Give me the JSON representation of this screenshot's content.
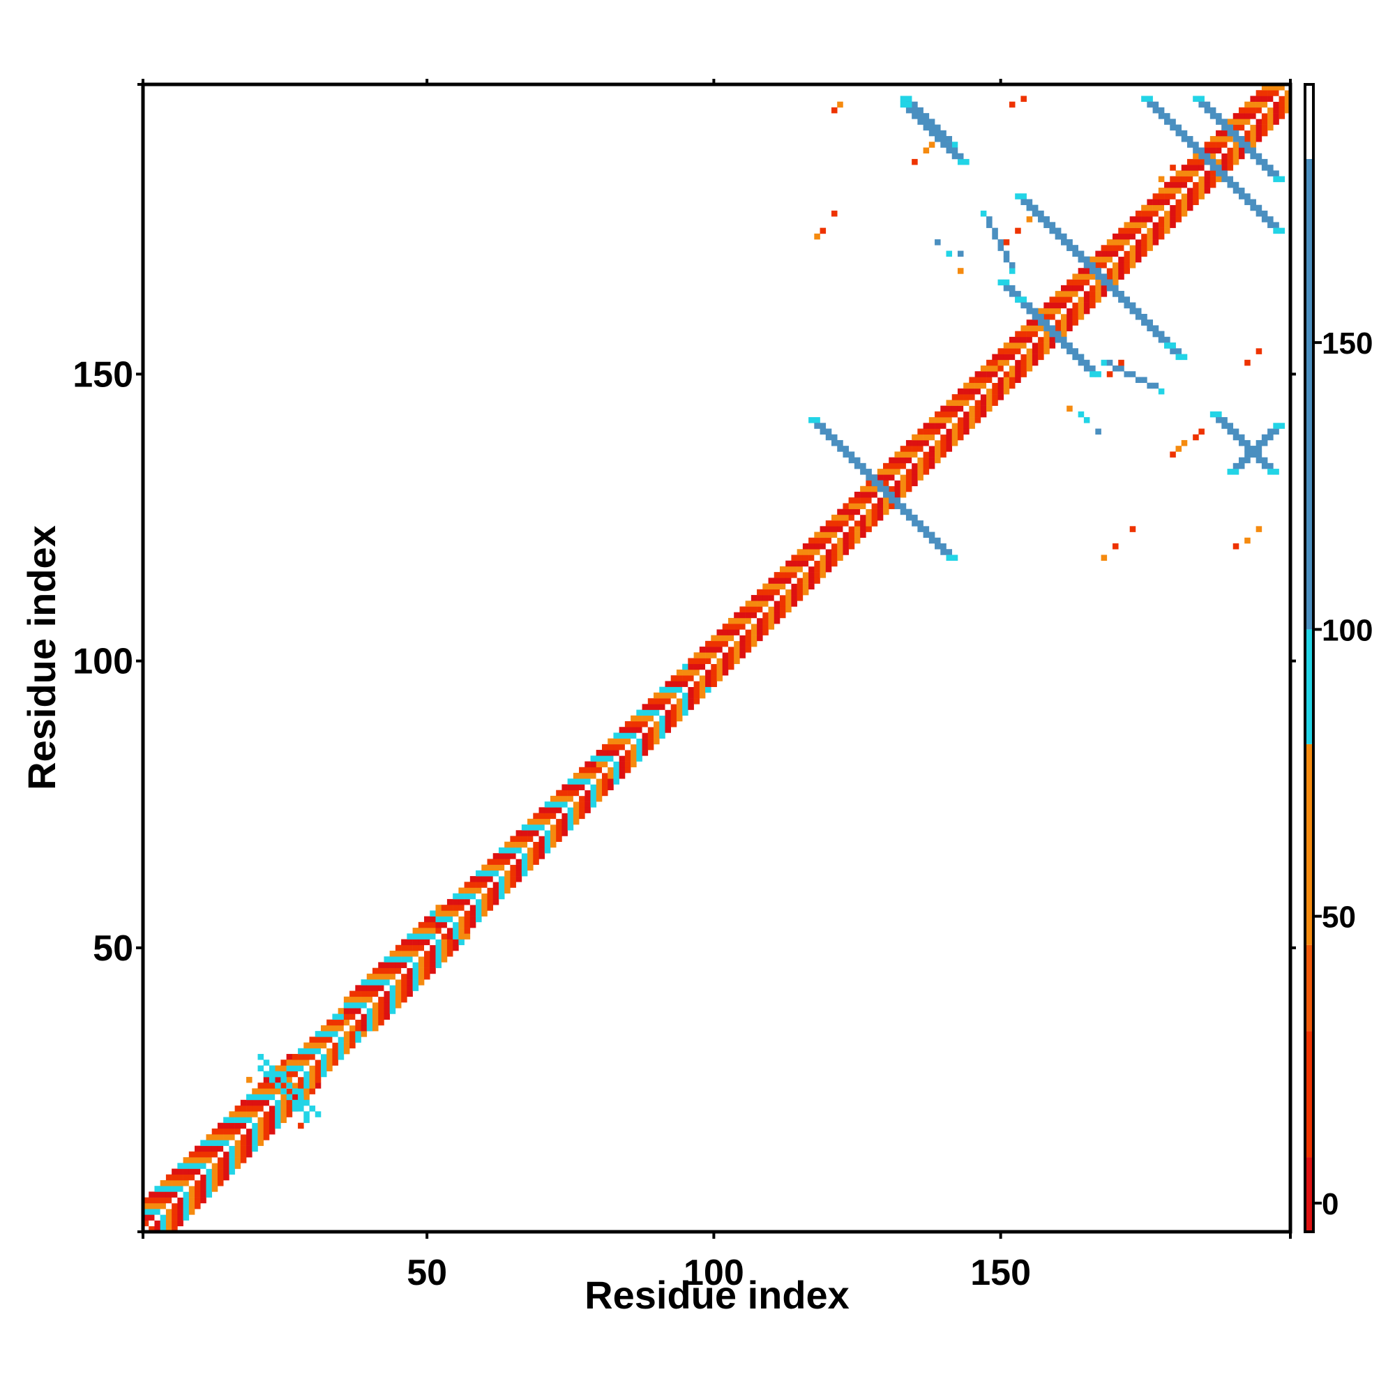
{
  "chart_data": {
    "type": "heatmap",
    "xlabel": "Residue index",
    "ylabel": "Residue index",
    "xlim": [
      1,
      200
    ],
    "ylim": [
      1,
      200
    ],
    "x_ticks": [
      50,
      100,
      150
    ],
    "y_ticks": [
      50,
      100,
      150
    ],
    "x_tick_labels": [
      "50",
      "100",
      "150"
    ],
    "y_tick_labels": [
      "50",
      "100",
      "150"
    ],
    "colorbar": {
      "range": [
        -5,
        195
      ],
      "ticks": [
        0,
        50,
        100,
        150
      ],
      "tick_labels": [
        "0",
        "50",
        "100",
        "150"
      ],
      "bands": [
        {
          "from": -5,
          "to": 8,
          "color": "#dd1111"
        },
        {
          "from": 8,
          "to": 30,
          "color": "#ee3300"
        },
        {
          "from": 30,
          "to": 45,
          "color": "#f05a0a"
        },
        {
          "from": 45,
          "to": 80,
          "color": "#f58a0f"
        },
        {
          "from": 80,
          "to": 100,
          "color": "#22d4e6"
        },
        {
          "from": 100,
          "to": 182,
          "color": "#4a8fc0"
        },
        {
          "from": 182,
          "to": 195,
          "color": "#ffffff"
        }
      ]
    },
    "palette": {
      "red": "#dd1111",
      "orange_red": "#ee3300",
      "orange": "#f58a0f",
      "cyan": "#22d4e6",
      "steel_blue": "#4a8fc0"
    },
    "diagonal_band": {
      "from": 1,
      "to": 200,
      "segments": [
        {
          "from": 1,
          "to": 26,
          "width": 5,
          "colors": [
            "cyan",
            "orange",
            "orange_red",
            "red"
          ]
        },
        {
          "from": 26,
          "to": 36,
          "width": 4,
          "colors": [
            "orange",
            "orange_red",
            "cyan"
          ]
        },
        {
          "from": 36,
          "to": 52,
          "width": 5,
          "colors": [
            "cyan",
            "orange",
            "orange_red",
            "red"
          ]
        },
        {
          "from": 52,
          "to": 80,
          "width": 4,
          "colors": [
            "orange",
            "orange_red",
            "red",
            "cyan"
          ]
        },
        {
          "from": 80,
          "to": 96,
          "width": 4,
          "colors": [
            "red",
            "orange_red",
            "orange",
            "cyan"
          ]
        },
        {
          "from": 96,
          "to": 124,
          "width": 4,
          "colors": [
            "red",
            "orange_red",
            "orange"
          ]
        },
        {
          "from": 124,
          "to": 150,
          "width": 4,
          "colors": [
            "red",
            "orange",
            "orange_red"
          ]
        },
        {
          "from": 150,
          "to": 200,
          "width": 4,
          "colors": [
            "red",
            "orange_red",
            "orange"
          ]
        }
      ]
    },
    "contact_strands": [
      {
        "from": [
          117,
          142
        ],
        "to": [
          141,
          118
        ],
        "width": 2,
        "color": "steel_blue"
      },
      {
        "from": [
          133,
          198
        ],
        "to": [
          141,
          190
        ],
        "width": 2,
        "color": "steel_blue"
      },
      {
        "from": [
          190,
          133
        ],
        "to": [
          198,
          141
        ],
        "width": 2,
        "color": "steel_blue"
      },
      {
        "from": [
          150,
          166
        ],
        "to": [
          163,
          153
        ],
        "width": 2,
        "color": "steel_blue"
      },
      {
        "from": [
          153,
          163
        ],
        "to": [
          166,
          150
        ],
        "width": 2,
        "color": "steel_blue"
      },
      {
        "from": [
          155,
          179
        ],
        "to": [
          181,
          153
        ],
        "width": 2,
        "color": "steel_blue"
      },
      {
        "from": [
          153,
          181
        ],
        "to": [
          179,
          155
        ],
        "width": 2,
        "color": "steel_blue"
      },
      {
        "from": [
          175,
          198
        ],
        "to": [
          198,
          175
        ],
        "width": 2,
        "color": "steel_blue"
      },
      {
        "from": [
          184,
          198
        ],
        "to": [
          198,
          184
        ],
        "width": 2,
        "color": "steel_blue"
      },
      {
        "from": [
          187,
          143
        ],
        "to": [
          197,
          133
        ],
        "width": 2,
        "color": "steel_blue"
      },
      {
        "from": [
          143,
          187
        ],
        "to": [
          133,
          197
        ],
        "width": 2,
        "color": "steel_blue"
      },
      {
        "from": [
          168,
          152
        ],
        "to": [
          178,
          147
        ],
        "width": 1,
        "color": "steel_blue"
      },
      {
        "from": [
          152,
          168
        ],
        "to": [
          147,
          178
        ],
        "width": 1,
        "color": "steel_blue"
      },
      {
        "from": [
          21,
          29
        ],
        "to": [
          29,
          21
        ],
        "width": 1,
        "color": "cyan"
      },
      {
        "from": [
          21,
          31
        ],
        "to": [
          31,
          21
        ],
        "width": 1,
        "color": "cyan"
      }
    ],
    "isolated_contacts": [
      {
        "x": 122,
        "y": 197,
        "color": "orange"
      },
      {
        "x": 121,
        "y": 196,
        "color": "orange_red"
      },
      {
        "x": 138,
        "y": 190,
        "color": "orange"
      },
      {
        "x": 137,
        "y": 189,
        "color": "orange"
      },
      {
        "x": 135,
        "y": 187,
        "color": "orange_red"
      },
      {
        "x": 152,
        "y": 197,
        "color": "orange_red"
      },
      {
        "x": 154,
        "y": 198,
        "color": "orange_red"
      },
      {
        "x": 118,
        "y": 174,
        "color": "orange"
      },
      {
        "x": 119,
        "y": 175,
        "color": "orange_red"
      },
      {
        "x": 121,
        "y": 178,
        "color": "orange_red"
      },
      {
        "x": 139,
        "y": 173,
        "color": "steel_blue"
      },
      {
        "x": 141,
        "y": 171,
        "color": "cyan"
      },
      {
        "x": 143,
        "y": 171,
        "color": "steel_blue"
      },
      {
        "x": 143,
        "y": 168,
        "color": "orange"
      },
      {
        "x": 151,
        "y": 173,
        "color": "orange_red"
      },
      {
        "x": 153,
        "y": 175,
        "color": "orange_red"
      },
      {
        "x": 155,
        "y": 177,
        "color": "orange"
      },
      {
        "x": 178,
        "y": 184,
        "color": "orange"
      },
      {
        "x": 180,
        "y": 186,
        "color": "orange_red"
      },
      {
        "x": 169,
        "y": 150,
        "color": "orange_red"
      },
      {
        "x": 171,
        "y": 152,
        "color": "orange_red"
      },
      {
        "x": 193,
        "y": 152,
        "color": "orange_red"
      },
      {
        "x": 195,
        "y": 154,
        "color": "orange_red"
      },
      {
        "x": 162,
        "y": 144,
        "color": "orange"
      },
      {
        "x": 164,
        "y": 143,
        "color": "cyan"
      },
      {
        "x": 165,
        "y": 142,
        "color": "cyan"
      },
      {
        "x": 167,
        "y": 140,
        "color": "steel_blue"
      },
      {
        "x": 181,
        "y": 137,
        "color": "orange"
      },
      {
        "x": 182,
        "y": 138,
        "color": "orange"
      },
      {
        "x": 184,
        "y": 139,
        "color": "orange_red"
      },
      {
        "x": 185,
        "y": 140,
        "color": "orange_red"
      },
      {
        "x": 180,
        "y": 136,
        "color": "orange_red"
      },
      {
        "x": 170,
        "y": 120,
        "color": "orange_red"
      },
      {
        "x": 173,
        "y": 123,
        "color": "orange_red"
      },
      {
        "x": 168,
        "y": 118,
        "color": "orange"
      },
      {
        "x": 193,
        "y": 121,
        "color": "orange"
      },
      {
        "x": 195,
        "y": 123,
        "color": "orange"
      },
      {
        "x": 191,
        "y": 120,
        "color": "orange_red"
      },
      {
        "x": 19,
        "y": 27,
        "color": "orange"
      },
      {
        "x": 22,
        "y": 28,
        "color": "cyan"
      },
      {
        "x": 28,
        "y": 19,
        "color": "orange_red"
      },
      {
        "x": 29,
        "y": 20,
        "color": "cyan"
      },
      {
        "x": 27,
        "y": 22,
        "color": "cyan"
      }
    ]
  }
}
